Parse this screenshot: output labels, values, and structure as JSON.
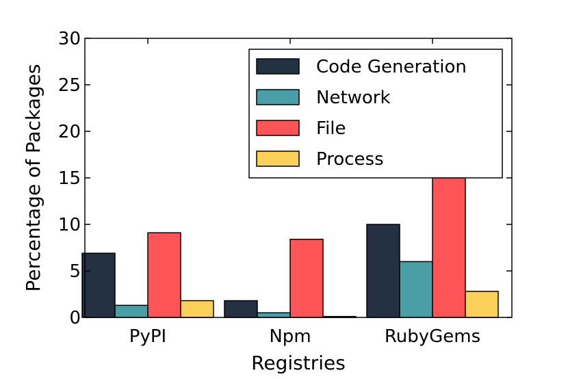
{
  "chart_data": {
    "type": "bar",
    "title": "",
    "xlabel": "Registries",
    "ylabel": "Percentage of Packages",
    "categories": [
      "PyPI",
      "Npm",
      "RubyGems"
    ],
    "ylim": [
      0,
      30
    ],
    "yticks": [
      0,
      5,
      10,
      15,
      20,
      25,
      30
    ],
    "series": [
      {
        "name": "Code Generation",
        "color": "#243142",
        "values": [
          6.9,
          1.8,
          10.0
        ]
      },
      {
        "name": "Network",
        "color": "#4a9ea6",
        "values": [
          1.3,
          0.5,
          6.0
        ]
      },
      {
        "name": "File",
        "color": "#fd5557",
        "values": [
          9.1,
          8.4,
          15.0
        ]
      },
      {
        "name": "Process",
        "color": "#fcd15b",
        "values": [
          1.8,
          0.1,
          2.8
        ]
      }
    ],
    "legend_position": "top-right",
    "grid": false
  }
}
